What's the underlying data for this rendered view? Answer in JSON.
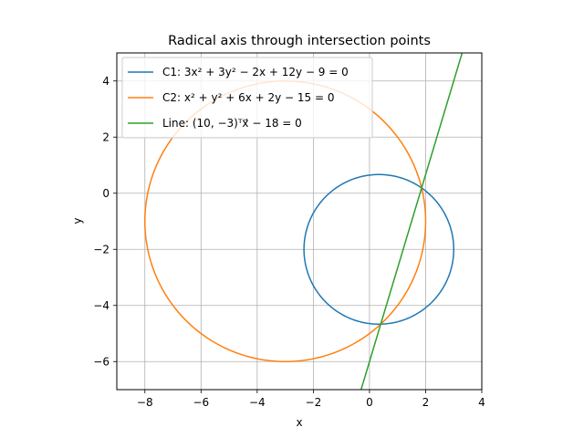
{
  "chart_data": {
    "type": "line",
    "title": "Radical axis through intersection points",
    "xlabel": "x",
    "ylabel": "y",
    "xlim": [
      -9,
      4
    ],
    "ylim": [
      -7,
      5
    ],
    "x_ticks": [
      -8,
      -6,
      -4,
      -2,
      0,
      2,
      4
    ],
    "y_ticks": [
      -6,
      -4,
      -2,
      0,
      2,
      4
    ],
    "x_tick_labels": [
      "−8",
      "−6",
      "−4",
      "−2",
      "0",
      "2",
      "4"
    ],
    "y_tick_labels": [
      "−6",
      "−4",
      "−2",
      "0",
      "2",
      "4"
    ],
    "grid": true,
    "legend_position": "upper-left",
    "series": [
      {
        "name": "C1: 3x² + 3y² − 2x + 12y − 9 = 0",
        "kind": "circle",
        "center": [
          0.3333,
          -2
        ],
        "radius": 2.6667,
        "color": "#1f77b4"
      },
      {
        "name": "C2: x² + y² + 6x + 2y − 15 = 0",
        "kind": "circle",
        "center": [
          -3,
          -1
        ],
        "radius": 5,
        "color": "#ff7f0e"
      },
      {
        "name": "Line: (10, −3)ᵀx⃗ − 18 = 0",
        "kind": "line",
        "a": 10,
        "b": -3,
        "c": -18,
        "color": "#2ca02c"
      }
    ]
  }
}
